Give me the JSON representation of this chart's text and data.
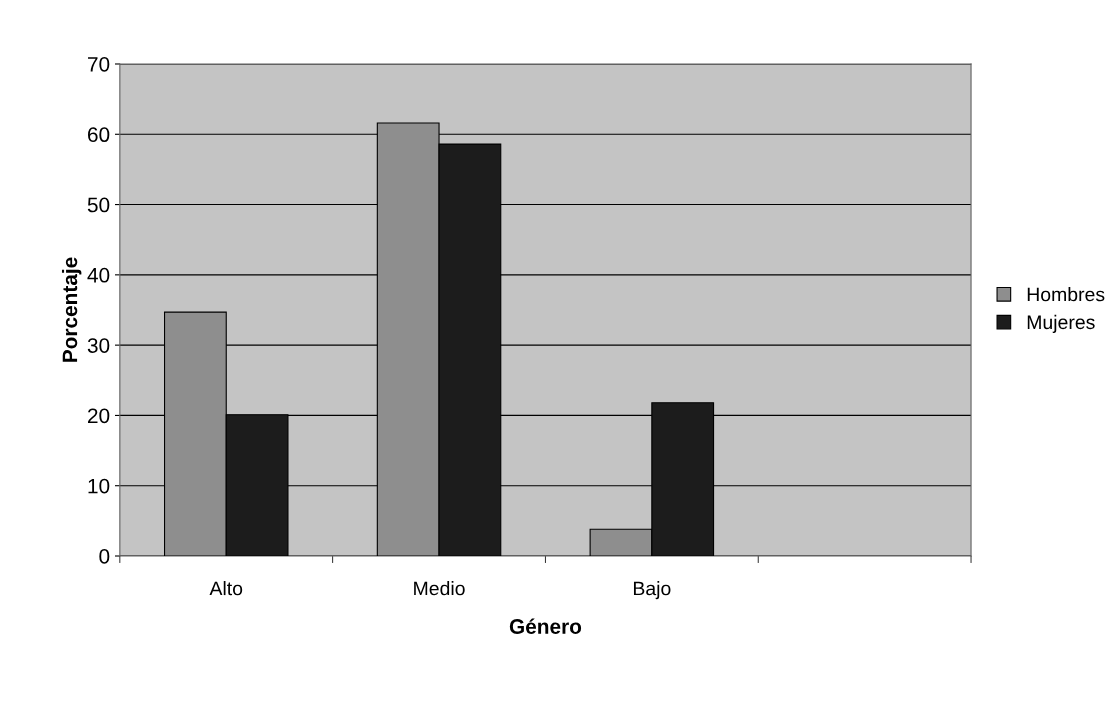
{
  "chart_data": {
    "type": "bar",
    "xlabel": "Género",
    "ylabel": "Porcentaje",
    "categories": [
      "Alto",
      "Medio",
      "Bajo",
      null
    ],
    "series": [
      {
        "name": "Hombres",
        "color": "#8e8e8e",
        "values": [
          34.7,
          61.6,
          3.8,
          null
        ]
      },
      {
        "name": "Mujeres",
        "color": "#1c1c1c",
        "values": [
          20.1,
          58.6,
          21.8,
          null
        ]
      }
    ],
    "ylim": [
      0,
      70
    ],
    "yticks": [
      0,
      10,
      20,
      30,
      40,
      50,
      60,
      70
    ],
    "grid": "y",
    "legend": "right"
  }
}
